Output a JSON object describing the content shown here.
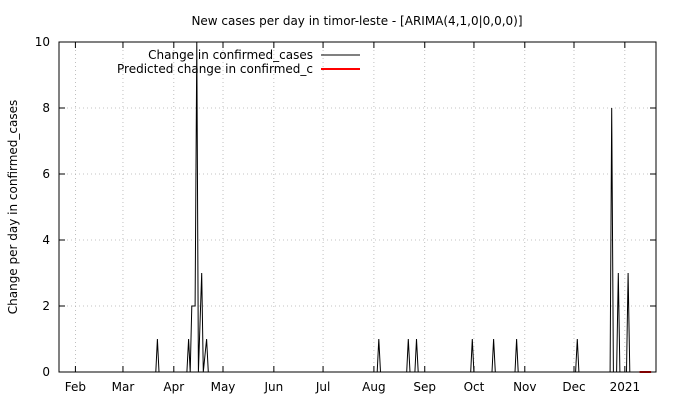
{
  "chart_data": {
    "type": "line",
    "title": "New cases per day in timor-leste -  [ARIMA(4,1,0|0,0,0)]",
    "xlabel": "",
    "ylabel": "Change per day in confirmed_cases",
    "x_range": [
      "2020-01-22",
      "2021-01-20"
    ],
    "ylim": [
      0,
      10
    ],
    "y_ticks": [
      0,
      2,
      4,
      6,
      8,
      10
    ],
    "x_ticks": [
      {
        "date": "2020-02-01",
        "label": "Feb"
      },
      {
        "date": "2020-03-01",
        "label": "Mar"
      },
      {
        "date": "2020-04-01",
        "label": "Apr"
      },
      {
        "date": "2020-05-01",
        "label": "May"
      },
      {
        "date": "2020-06-01",
        "label": "Jun"
      },
      {
        "date": "2020-07-01",
        "label": "Jul"
      },
      {
        "date": "2020-08-01",
        "label": "Aug"
      },
      {
        "date": "2020-09-01",
        "label": "Sep"
      },
      {
        "date": "2020-10-01",
        "label": "Oct"
      },
      {
        "date": "2020-11-01",
        "label": "Nov"
      },
      {
        "date": "2020-12-01",
        "label": "Dec"
      },
      {
        "date": "2021-01-01",
        "label": "2021"
      }
    ],
    "grid": true,
    "legend_position": "top-left",
    "series": [
      {
        "name": "Change in confirmed_cases",
        "color": "#000000",
        "points": [
          [
            "2020-01-22",
            0
          ],
          [
            "2020-03-21",
            0
          ],
          [
            "2020-03-22",
            1
          ],
          [
            "2020-03-23",
            0
          ],
          [
            "2020-04-09",
            0
          ],
          [
            "2020-04-10",
            1
          ],
          [
            "2020-04-11",
            0
          ],
          [
            "2020-04-12",
            2
          ],
          [
            "2020-04-14",
            2
          ],
          [
            "2020-04-15",
            10
          ],
          [
            "2020-04-16",
            0
          ],
          [
            "2020-04-18",
            3
          ],
          [
            "2020-04-19",
            0
          ],
          [
            "2020-04-21",
            1
          ],
          [
            "2020-04-22",
            0
          ],
          [
            "2020-08-03",
            0
          ],
          [
            "2020-08-04",
            1
          ],
          [
            "2020-08-05",
            0
          ],
          [
            "2020-08-21",
            0
          ],
          [
            "2020-08-22",
            1
          ],
          [
            "2020-08-23",
            0
          ],
          [
            "2020-08-26",
            0
          ],
          [
            "2020-08-27",
            1
          ],
          [
            "2020-08-28",
            0
          ],
          [
            "2020-09-29",
            0
          ],
          [
            "2020-09-30",
            1
          ],
          [
            "2020-10-01",
            0
          ],
          [
            "2020-10-12",
            0
          ],
          [
            "2020-10-13",
            1
          ],
          [
            "2020-10-14",
            0
          ],
          [
            "2020-10-26",
            0
          ],
          [
            "2020-10-27",
            1
          ],
          [
            "2020-10-28",
            0
          ],
          [
            "2020-12-02",
            0
          ],
          [
            "2020-12-03",
            1
          ],
          [
            "2020-12-04",
            0
          ],
          [
            "2020-12-23",
            0
          ],
          [
            "2020-12-24",
            8
          ],
          [
            "2020-12-25",
            0
          ],
          [
            "2020-12-27",
            0
          ],
          [
            "2020-12-28",
            3
          ],
          [
            "2020-12-29",
            0
          ],
          [
            "2021-01-02",
            0
          ],
          [
            "2021-01-03",
            3
          ],
          [
            "2021-01-04",
            0
          ],
          [
            "2021-01-10",
            0
          ]
        ]
      },
      {
        "name": "Predicted change in confirmed_c",
        "color": "#ff0000",
        "points": [
          [
            "2021-01-10",
            0
          ],
          [
            "2021-01-17",
            0
          ]
        ]
      }
    ]
  }
}
